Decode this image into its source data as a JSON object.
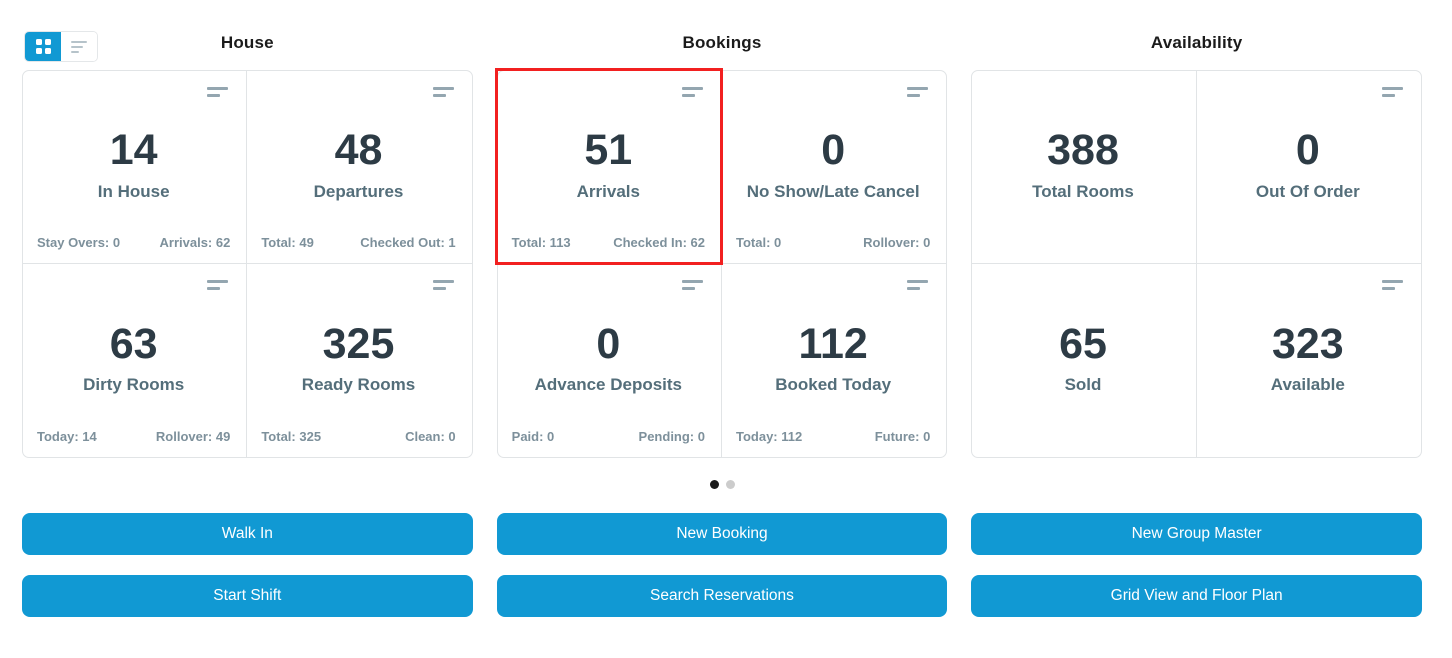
{
  "view_toggle": {
    "grid_button": "grid-view",
    "list_button": "list-view",
    "active": "grid-view"
  },
  "sections": [
    {
      "title": "House",
      "cards": [
        {
          "value": "14",
          "label": "In House",
          "footer_left": "Stay Overs: 0",
          "footer_right": "Arrivals: 62",
          "menu_icon": true,
          "highlighted": false
        },
        {
          "value": "48",
          "label": "Departures",
          "footer_left": "Total: 49",
          "footer_right": "Checked Out: 1",
          "menu_icon": true,
          "highlighted": false
        },
        {
          "value": "63",
          "label": "Dirty Rooms",
          "footer_left": "Today: 14",
          "footer_right": "Rollover: 49",
          "menu_icon": true,
          "highlighted": false
        },
        {
          "value": "325",
          "label": "Ready Rooms",
          "footer_left": "Total: 325",
          "footer_right": "Clean: 0",
          "menu_icon": true,
          "highlighted": false
        }
      ],
      "buttons": [
        "Walk In",
        "Start Shift"
      ]
    },
    {
      "title": "Bookings",
      "cards": [
        {
          "value": "51",
          "label": "Arrivals",
          "footer_left": "Total: 113",
          "footer_right": "Checked In: 62",
          "menu_icon": true,
          "highlighted": true
        },
        {
          "value": "0",
          "label": "No Show/Late Cancel",
          "footer_left": "Total: 0",
          "footer_right": "Rollover: 0",
          "menu_icon": true,
          "highlighted": false
        },
        {
          "value": "0",
          "label": "Advance Deposits",
          "footer_left": "Paid: 0",
          "footer_right": "Pending: 0",
          "menu_icon": true,
          "highlighted": false
        },
        {
          "value": "112",
          "label": "Booked Today",
          "footer_left": "Today: 112",
          "footer_right": "Future: 0",
          "menu_icon": true,
          "highlighted": false
        }
      ],
      "buttons": [
        "New Booking",
        "Search Reservations"
      ]
    },
    {
      "title": "Availability",
      "cards": [
        {
          "value": "388",
          "label": "Total Rooms",
          "footer_left": "",
          "footer_right": "",
          "menu_icon": false,
          "highlighted": false
        },
        {
          "value": "0",
          "label": "Out Of Order",
          "footer_left": "",
          "footer_right": "",
          "menu_icon": true,
          "highlighted": false
        },
        {
          "value": "65",
          "label": "Sold",
          "footer_left": "",
          "footer_right": "",
          "menu_icon": false,
          "highlighted": false
        },
        {
          "value": "323",
          "label": "Available",
          "footer_left": "",
          "footer_right": "",
          "menu_icon": true,
          "highlighted": false
        }
      ],
      "buttons": [
        "New Group Master",
        "Grid View and Floor Plan"
      ]
    }
  ],
  "pagination": {
    "dots": [
      {
        "active": true
      },
      {
        "active": false
      }
    ]
  },
  "colors": {
    "accent_blue": "#1199d3",
    "highlight_red": "#f22020",
    "value_text": "#2d3b45",
    "label_text": "#546e7a",
    "footer_text": "#7d909b",
    "icon_gray": "#94a6b0",
    "border_gray": "#e1e4e6",
    "dot_active": "#1b1b1b",
    "dot_inactive": "#cccccc"
  }
}
